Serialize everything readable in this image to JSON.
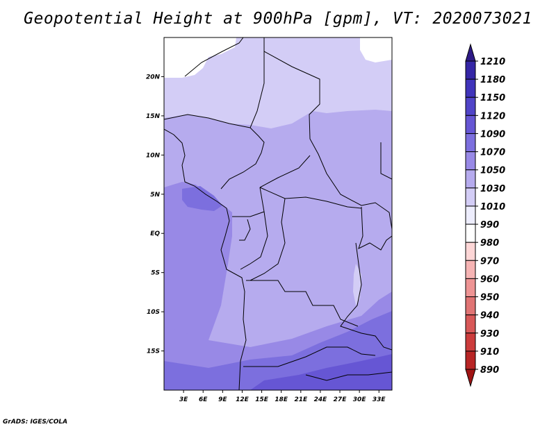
{
  "title": "Geopotential Height at 900hPa [gpm], VT: 2020073021",
  "credit": "GrADS: IGES/COLA",
  "map": {
    "lon_range": [
      0,
      35
    ],
    "lat_range": [
      -20,
      25
    ],
    "lon_ticks": [
      {
        "value": 3,
        "label": "3E"
      },
      {
        "value": 6,
        "label": "6E"
      },
      {
        "value": 9,
        "label": "9E"
      },
      {
        "value": 12,
        "label": "12E"
      },
      {
        "value": 15,
        "label": "15E"
      },
      {
        "value": 18,
        "label": "18E"
      },
      {
        "value": 21,
        "label": "21E"
      },
      {
        "value": 24,
        "label": "24E"
      },
      {
        "value": 27,
        "label": "27E"
      },
      {
        "value": 30,
        "label": "30E"
      },
      {
        "value": 33,
        "label": "33E"
      }
    ],
    "lat_ticks": [
      {
        "value": 20,
        "label": "20N"
      },
      {
        "value": 15,
        "label": "15N"
      },
      {
        "value": 10,
        "label": "10N"
      },
      {
        "value": 5,
        "label": "5N"
      },
      {
        "value": 0,
        "label": "EQ"
      },
      {
        "value": -5,
        "label": "5S"
      },
      {
        "value": -10,
        "label": "10S"
      },
      {
        "value": -15,
        "label": "15S"
      }
    ]
  },
  "colorbar": {
    "levels": [
      "1210",
      "1180",
      "1150",
      "1120",
      "1090",
      "1070",
      "1050",
      "1030",
      "1010",
      "990",
      "980",
      "970",
      "960",
      "950",
      "940",
      "930",
      "910",
      "890"
    ],
    "colors": [
      "#2e1a86",
      "#3526a6",
      "#4034bb",
      "#5044c8",
      "#6656d4",
      "#7c6fde",
      "#9889e6",
      "#b6abee",
      "#d3cdf6",
      "#ededfd",
      "#ffffff",
      "#fdd6d6",
      "#f6b4b4",
      "#ee9494",
      "#e07474",
      "#d85858",
      "#cc3c3c",
      "#b82525",
      "#a01414"
    ]
  }
}
